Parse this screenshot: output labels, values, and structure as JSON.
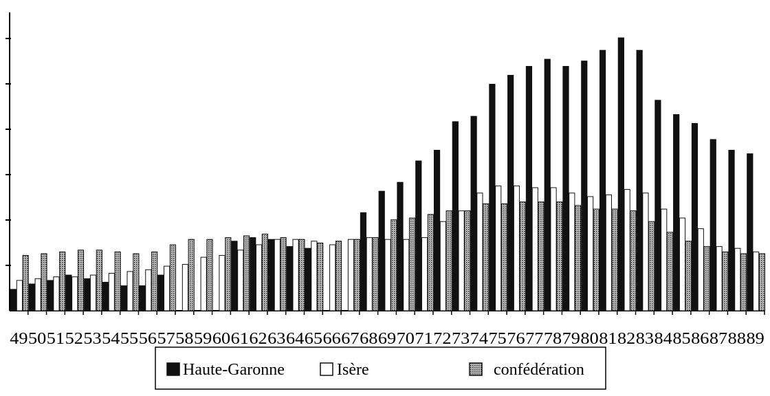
{
  "chart_data": {
    "type": "bar",
    "title": "",
    "xlabel": "",
    "ylabel": "",
    "ylim": [
      0,
      8
    ],
    "grid": false,
    "legend_position": "bottom",
    "categories": [
      "49",
      "50",
      "51",
      "52",
      "53",
      "54",
      "55",
      "56",
      "57",
      "58",
      "59",
      "60",
      "61",
      "62",
      "63",
      "64",
      "65",
      "66",
      "67",
      "68",
      "69",
      "70",
      "71",
      "72",
      "73",
      "74",
      "75",
      "76",
      "77",
      "78",
      "79",
      "80",
      "81",
      "82",
      "83",
      "84",
      "85",
      "86",
      "87",
      "88",
      "89"
    ],
    "series": [
      {
        "name": "Haute-Garonne",
        "values": [
          0.6,
          0.75,
          0.85,
          1.0,
          0.9,
          0.8,
          0.7,
          0.7,
          1.0,
          null,
          null,
          null,
          1.95,
          2.05,
          2.0,
          1.8,
          1.75,
          null,
          null,
          2.75,
          3.35,
          3.6,
          4.2,
          4.5,
          5.3,
          5.45,
          6.35,
          6.6,
          6.85,
          7.05,
          6.85,
          7.0,
          7.3,
          7.65,
          7.3,
          5.9,
          5.5,
          5.25,
          4.8,
          4.5,
          4.4
        ],
        "color": "#111111"
      },
      {
        "name": "Isère",
        "values": [
          0.85,
          0.9,
          0.95,
          0.95,
          1.0,
          1.05,
          1.1,
          1.15,
          1.25,
          1.3,
          1.5,
          1.55,
          1.7,
          1.85,
          2.0,
          2.0,
          1.95,
          1.85,
          2.0,
          2.05,
          2.0,
          2.0,
          2.05,
          2.5,
          2.8,
          3.3,
          3.5,
          3.5,
          3.45,
          3.45,
          3.3,
          3.2,
          3.25,
          3.4,
          3.3,
          2.85,
          2.6,
          2.3,
          1.8,
          1.75,
          1.65
        ],
        "color": "#ffffff"
      },
      {
        "name": "confédération",
        "values": [
          1.55,
          1.6,
          1.65,
          1.7,
          1.7,
          1.65,
          1.6,
          1.65,
          1.85,
          2.0,
          2.0,
          2.05,
          2.1,
          2.15,
          2.05,
          2.0,
          1.9,
          1.95,
          2.0,
          2.05,
          2.55,
          2.6,
          2.7,
          2.8,
          2.8,
          3.0,
          3.0,
          3.05,
          3.05,
          3.05,
          2.95,
          2.85,
          2.85,
          2.8,
          2.5,
          2.2,
          1.95,
          1.8,
          1.65,
          1.6,
          1.6
        ],
        "color": "#8a8a8a"
      }
    ]
  },
  "legend": {
    "items": [
      {
        "label": "Haute-Garonne"
      },
      {
        "label": "Isère"
      },
      {
        "label": "confédération"
      }
    ]
  }
}
